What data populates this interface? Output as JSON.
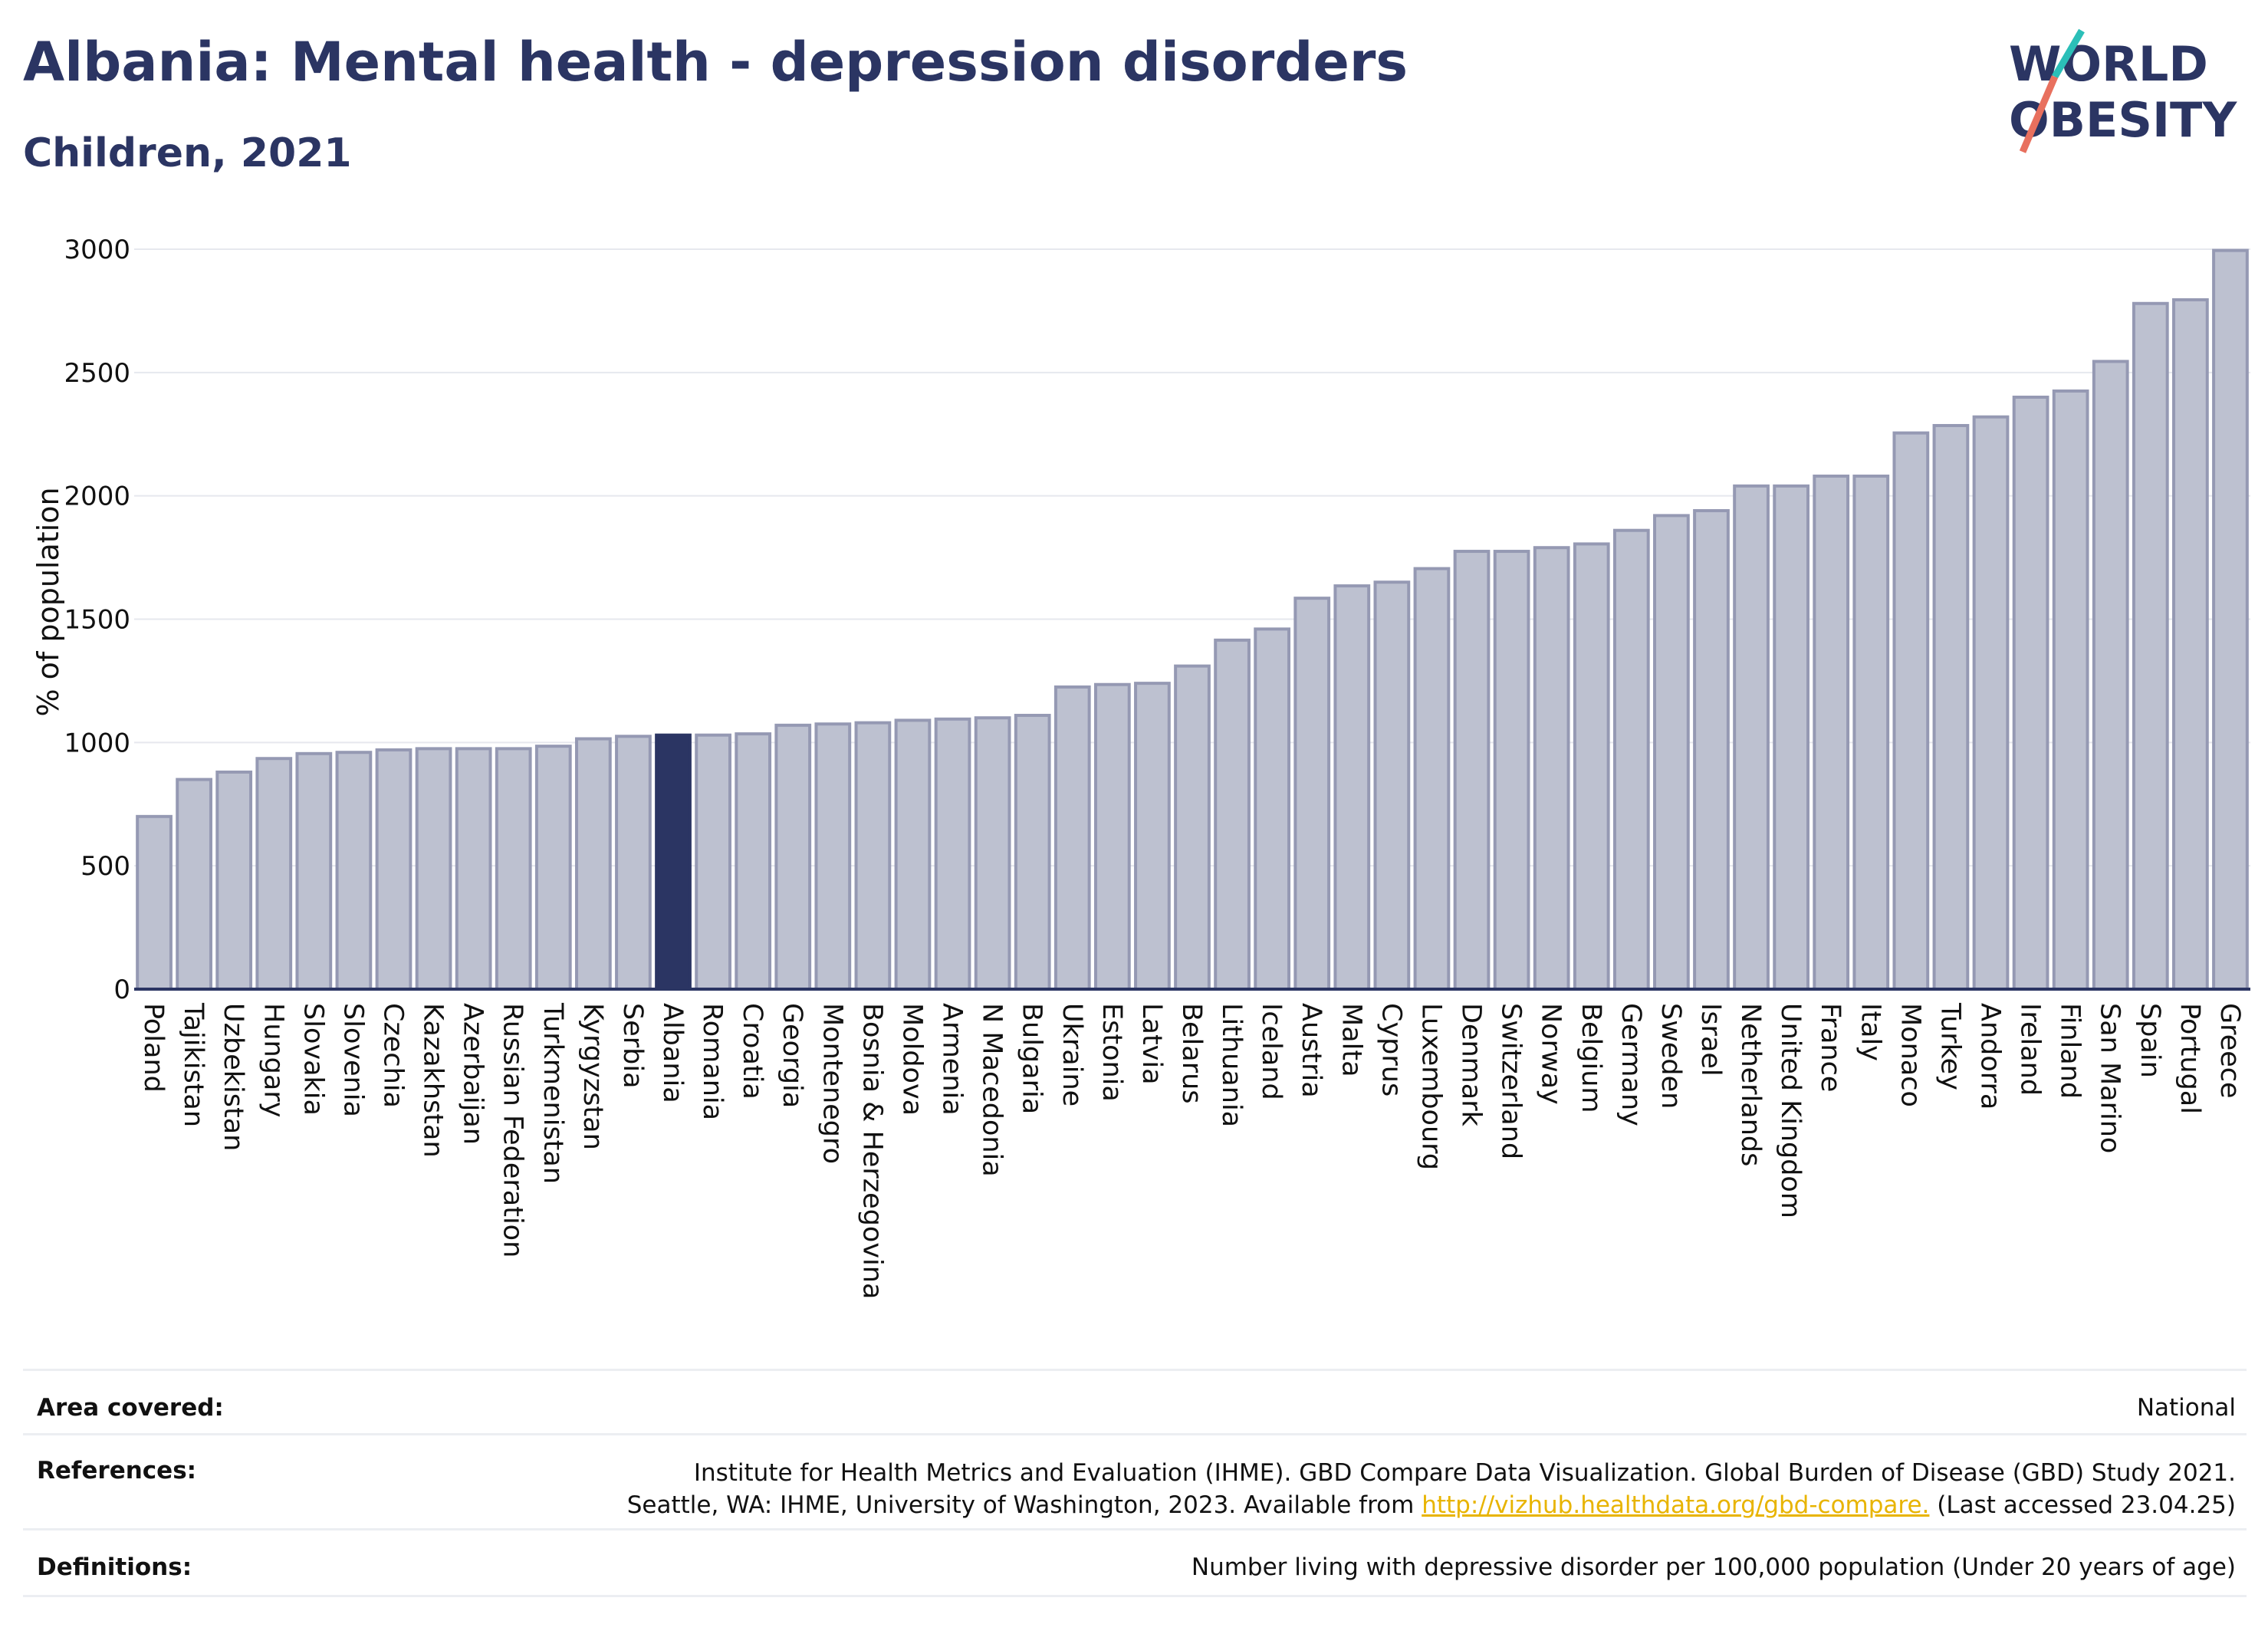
{
  "header": {
    "title": "Albania: Mental health - depression disorders",
    "subtitle": "Children, 2021",
    "logo_line1": "WORLD",
    "logo_line2": "OBESITY"
  },
  "colors": {
    "title": "#2b3563",
    "bar": "#bdc1d0",
    "bar_stroke": "#9599b3",
    "highlight": "#2b3563",
    "logo_teal": "#2bbfb8",
    "logo_coral": "#e8705e"
  },
  "chart_data": {
    "type": "bar",
    "title": "Albania: Mental health - depression disorders",
    "subtitle": "Children, 2021",
    "ylabel": "% of population",
    "xlabel": "",
    "ylim": [
      0,
      3000
    ],
    "yticks": [
      0,
      500,
      1000,
      1500,
      2000,
      2500,
      3000
    ],
    "grid": true,
    "highlight": "Albania",
    "categories": [
      "Poland",
      "Tajikistan",
      "Uzbekistan",
      "Hungary",
      "Slovakia",
      "Slovenia",
      "Czechia",
      "Kazakhstan",
      "Azerbaijan",
      "Russian Federation",
      "Turkmenistan",
      "Kyrgyzstan",
      "Serbia",
      "Albania",
      "Romania",
      "Croatia",
      "Georgia",
      "Montenegro",
      "Bosnia & Herzegovina",
      "Moldova",
      "Armenia",
      "N Macedonia",
      "Bulgaria",
      "Ukraine",
      "Estonia",
      "Latvia",
      "Belarus",
      "Lithuania",
      "Iceland",
      "Austria",
      "Malta",
      "Cyprus",
      "Luxembourg",
      "Denmark",
      "Switzerland",
      "Norway",
      "Belgium",
      "Germany",
      "Sweden",
      "Israel",
      "Netherlands",
      "United Kingdom",
      "France",
      "Italy",
      "Monaco",
      "Turkey",
      "Andorra",
      "Ireland",
      "Finland",
      "San Marino",
      "Spain",
      "Portugal",
      "Greece"
    ],
    "values": [
      700,
      850,
      880,
      935,
      955,
      960,
      970,
      975,
      975,
      975,
      985,
      1015,
      1025,
      1030,
      1030,
      1035,
      1070,
      1075,
      1080,
      1090,
      1095,
      1100,
      1110,
      1225,
      1235,
      1240,
      1310,
      1415,
      1460,
      1585,
      1635,
      1650,
      1705,
      1775,
      1775,
      1790,
      1805,
      1860,
      1920,
      1940,
      2040,
      2040,
      2080,
      2080,
      2255,
      2285,
      2320,
      2400,
      2425,
      2545,
      2780,
      2795,
      2995
    ]
  },
  "info": {
    "area_key": "Area covered:",
    "area_val": "National",
    "ref_key": "References:",
    "ref_line1": "Institute for Health Metrics and Evaluation (IHME). GBD Compare Data Visualization. Global Burden of Disease (GBD) Study 2021.",
    "ref_line2_prefix": "Seattle, WA: IHME, University of Washington, 2023. Available from",
    "ref_link": "http://vizhub.healthdata.org/gbd-compare.",
    "ref_line2_suffix": "(Last accessed 23.04.25)",
    "def_key": "Definitions:",
    "def_val": "Number living with depressive disorder per 100,000 population (Under 20 years of age)"
  }
}
